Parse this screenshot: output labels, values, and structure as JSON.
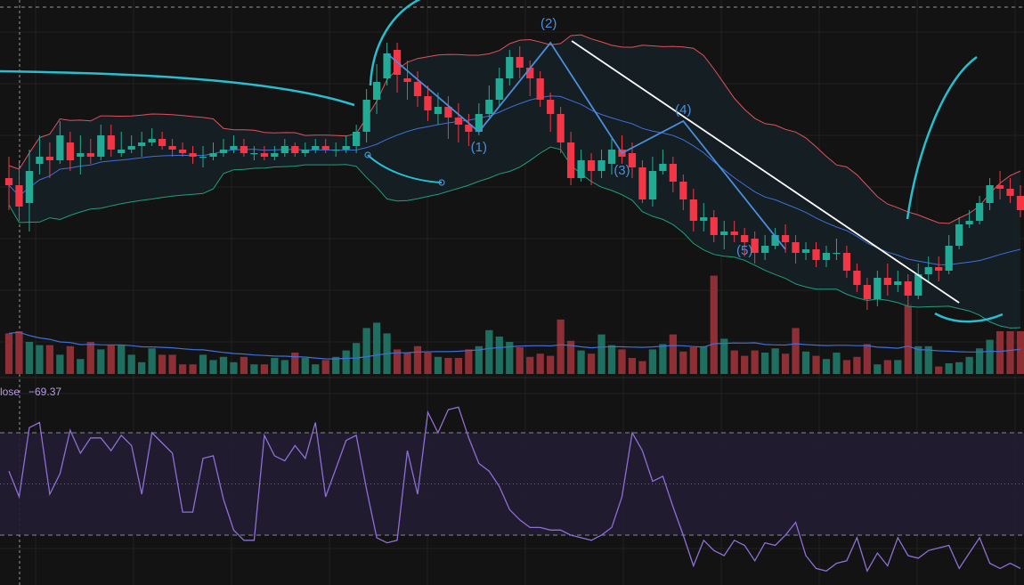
{
  "colors": {
    "background": "#131313",
    "grid": "#222222",
    "up": "#22ab94",
    "down": "#f23645",
    "volume_up": "#1f6f60",
    "volume_down": "#8e2f35",
    "bb_upper": "#e0515b",
    "bb_basis": "#3f6fd9",
    "bb_lower": "#1f9f7b",
    "bb_fill": "#162127",
    "volume_ma": "#3f6fd9",
    "trendline": "#ffffff",
    "wave_line": "#4a8fdb",
    "wave_label": "#4a8fdb",
    "drawing": "#26bfcf",
    "rsi_line": "#8e6fd6",
    "rsi_band": "#231d33",
    "rsi_text": "#b69be0",
    "crosshair": "#9a9a9a"
  },
  "rsi_panel": {
    "series_label": "lose",
    "value": "−69.37"
  },
  "wave_labels": [
    "(1)",
    "(2)",
    "(3)",
    "(4)",
    "(5)"
  ],
  "chart_data": {
    "type": "candlestick",
    "price_pane": {
      "grid": true,
      "bollinger_bands": true,
      "ohlc": [
        [
          140,
          138,
          146,
          131
        ],
        [
          138,
          132,
          145,
          128
        ],
        [
          133,
          142,
          148,
          125
        ],
        [
          144,
          146,
          152,
          141
        ],
        [
          146,
          145,
          150,
          140
        ],
        [
          145,
          152,
          156,
          144
        ],
        [
          150,
          145,
          153,
          142
        ],
        [
          146,
          147,
          152,
          141
        ],
        [
          147,
          146,
          151,
          144
        ],
        [
          146,
          152,
          155,
          145
        ],
        [
          152,
          148,
          155,
          146
        ],
        [
          147,
          148,
          153,
          146
        ],
        [
          148,
          149,
          152,
          147
        ],
        [
          149,
          150,
          153,
          146
        ],
        [
          150,
          151,
          154,
          149
        ],
        [
          151,
          149,
          153,
          148
        ],
        [
          149,
          148,
          151,
          146
        ],
        [
          148,
          147,
          150,
          146
        ],
        [
          147,
          146,
          149,
          144
        ],
        [
          146,
          146,
          149,
          143
        ],
        [
          146,
          147,
          150,
          145
        ],
        [
          147,
          148,
          151,
          146
        ],
        [
          148,
          149,
          152,
          147
        ],
        [
          149,
          147,
          151,
          146
        ],
        [
          147,
          147,
          149,
          145
        ],
        [
          147,
          146,
          149,
          145
        ],
        [
          146,
          147,
          149,
          145
        ],
        [
          147,
          149,
          151,
          146
        ],
        [
          149,
          147,
          150,
          146
        ],
        [
          147,
          148,
          150,
          146
        ],
        [
          148,
          149,
          151,
          147
        ],
        [
          149,
          148,
          151,
          147
        ],
        [
          148,
          148,
          150,
          146
        ],
        [
          148,
          149,
          152,
          147
        ],
        [
          149,
          153,
          155,
          147
        ],
        [
          153,
          162,
          165,
          150
        ],
        [
          162,
          167,
          172,
          158
        ],
        [
          168,
          175,
          178,
          166
        ],
        [
          176,
          169,
          178,
          164
        ],
        [
          168,
          167,
          173,
          162
        ],
        [
          167,
          163,
          170,
          160
        ],
        [
          163,
          159,
          166,
          156
        ],
        [
          158,
          160,
          164,
          155
        ],
        [
          160,
          157,
          163,
          151
        ],
        [
          157,
          155,
          161,
          150
        ],
        [
          155,
          153,
          158,
          149
        ],
        [
          153,
          158,
          161,
          152
        ],
        [
          158,
          162,
          166,
          157
        ],
        [
          162,
          168,
          171,
          160
        ],
        [
          168,
          174,
          176,
          166
        ],
        [
          174,
          171,
          177,
          168
        ],
        [
          171,
          168,
          173,
          163
        ],
        [
          168,
          162,
          170,
          160
        ],
        [
          162,
          158,
          164,
          153
        ],
        [
          158,
          150,
          160,
          147
        ],
        [
          150,
          140,
          153,
          138
        ],
        [
          140,
          145,
          148,
          139
        ],
        [
          145,
          142,
          147,
          138
        ],
        [
          142,
          145,
          148,
          140
        ],
        [
          144,
          148,
          151,
          141
        ],
        [
          148,
          146,
          152,
          144
        ],
        [
          147,
          143,
          150,
          140
        ],
        [
          143,
          134,
          145,
          133
        ],
        [
          134,
          142,
          146,
          132
        ],
        [
          142,
          144,
          148,
          141
        ],
        [
          144,
          139,
          146,
          136
        ],
        [
          139,
          134,
          141,
          131
        ],
        [
          134,
          128,
          137,
          125
        ],
        [
          128,
          129,
          133,
          125
        ],
        [
          129,
          124,
          131,
          122
        ],
        [
          124,
          125,
          128,
          120
        ],
        [
          125,
          124,
          128,
          122
        ],
        [
          124,
          122,
          126,
          118
        ],
        [
          123,
          119,
          125,
          116
        ],
        [
          119,
          121,
          124,
          117
        ],
        [
          121,
          124,
          126,
          120
        ],
        [
          124,
          122,
          127,
          119
        ],
        [
          122,
          119,
          124,
          116
        ],
        [
          119,
          120,
          122,
          117
        ],
        [
          120,
          117,
          122,
          115
        ],
        [
          117,
          119,
          121,
          115
        ],
        [
          119,
          119,
          123,
          117
        ],
        [
          119,
          114,
          121,
          112
        ],
        [
          114,
          110,
          116,
          108
        ],
        [
          110,
          106,
          112,
          103
        ],
        [
          106,
          112,
          114,
          104
        ],
        [
          112,
          110,
          116,
          107
        ],
        [
          110,
          111,
          114,
          108
        ],
        [
          111,
          107,
          113,
          104
        ],
        [
          107,
          113,
          116,
          106
        ],
        [
          113,
          115,
          118,
          111
        ],
        [
          115,
          114,
          118,
          111
        ],
        [
          114,
          121,
          124,
          113
        ],
        [
          121,
          127,
          129,
          120
        ],
        [
          127,
          128,
          131,
          126
        ],
        [
          128,
          133,
          135,
          127
        ],
        [
          133,
          138,
          140,
          131
        ],
        [
          138,
          137,
          142,
          134
        ],
        [
          137,
          135,
          140,
          133
        ],
        [
          135,
          131,
          138,
          129
        ]
      ],
      "volume": [
        38,
        40,
        30,
        27,
        27,
        18,
        26,
        14,
        30,
        23,
        27,
        27,
        18,
        11,
        24,
        18,
        18,
        9,
        9,
        18,
        13,
        16,
        11,
        16,
        9,
        9,
        15,
        13,
        20,
        15,
        9,
        13,
        16,
        22,
        29,
        43,
        48,
        38,
        23,
        20,
        26,
        20,
        16,
        15,
        15,
        23,
        26,
        41,
        35,
        30,
        25,
        16,
        19,
        17,
        51,
        31,
        22,
        19,
        37,
        27,
        23,
        15,
        12,
        23,
        28,
        37,
        21,
        25,
        26,
        92,
        33,
        22,
        17,
        22,
        20,
        24,
        19,
        43,
        21,
        17,
        14,
        20,
        13,
        16,
        28,
        9,
        13,
        13,
        66,
        26,
        26,
        7,
        10,
        11,
        16,
        24,
        32,
        40,
        40,
        40
      ]
    },
    "rsi_pane": {
      "levels": [
        70,
        50,
        30
      ],
      "values": [
        55,
        45,
        72,
        74,
        46,
        54,
        71,
        62,
        68,
        68,
        63,
        69,
        65,
        46,
        70,
        66,
        62,
        39,
        39,
        60,
        61,
        44,
        32,
        28,
        28,
        69,
        61,
        59,
        65,
        60,
        74,
        45,
        56,
        67,
        69,
        48,
        29,
        27,
        28,
        63,
        46,
        78,
        70,
        79,
        80,
        68,
        58,
        55,
        49,
        40,
        36,
        33,
        33,
        32,
        32,
        30,
        29,
        28,
        30,
        33,
        45,
        70,
        63,
        51,
        53,
        41,
        30,
        18,
        28,
        24,
        22,
        28,
        26,
        20,
        27,
        26,
        30,
        35,
        22,
        17,
        16,
        19,
        20,
        29,
        16,
        23,
        18,
        29,
        22,
        21,
        24,
        25,
        26,
        17,
        23,
        29,
        19,
        17,
        19,
        17
      ]
    }
  }
}
